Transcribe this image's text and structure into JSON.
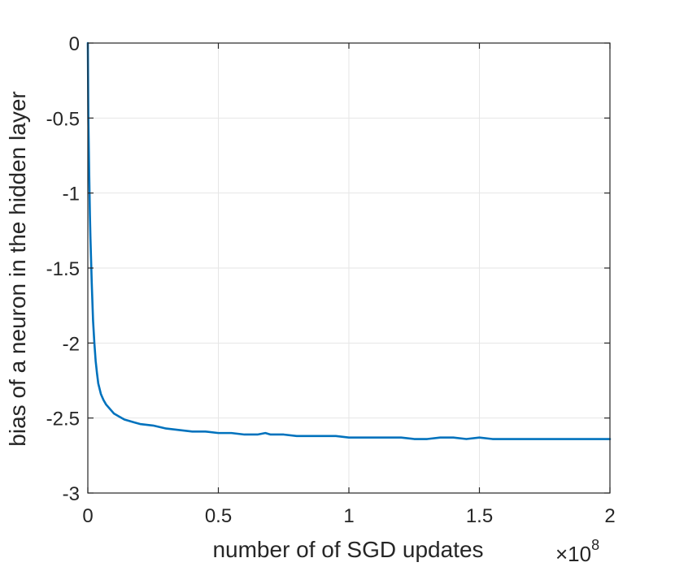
{
  "chart_data": {
    "type": "line",
    "xlabel": "number of of SGD updates",
    "ylabel": "bias of a neuron in the hidden layer",
    "x_exponent_label": {
      "base": "×10",
      "power": "8"
    },
    "xlim": [
      0,
      2
    ],
    "ylim": [
      -3,
      0
    ],
    "xticks": [
      {
        "value": 0,
        "label": "0"
      },
      {
        "value": 0.5,
        "label": "0.5"
      },
      {
        "value": 1,
        "label": "1"
      },
      {
        "value": 1.5,
        "label": "1.5"
      },
      {
        "value": 2,
        "label": "2"
      }
    ],
    "yticks": [
      {
        "value": 0,
        "label": "0"
      },
      {
        "value": -0.5,
        "label": "-0.5"
      },
      {
        "value": -1,
        "label": "-1"
      },
      {
        "value": -1.5,
        "label": "-1.5"
      },
      {
        "value": -2,
        "label": "-2"
      },
      {
        "value": -2.5,
        "label": "-2.5"
      },
      {
        "value": -3,
        "label": "-3"
      }
    ],
    "grid": true,
    "colors": {
      "series": "#0072BD",
      "grid": "#e6e6e6",
      "axis": "#262626"
    },
    "series": [
      {
        "x": [
          0,
          0.002,
          0.005,
          0.008,
          0.01,
          0.015,
          0.02,
          0.025,
          0.03,
          0.035,
          0.04,
          0.05,
          0.06,
          0.07,
          0.08,
          0.09,
          0.1,
          0.12,
          0.14,
          0.16,
          0.18,
          0.2,
          0.25,
          0.3,
          0.35,
          0.4,
          0.45,
          0.5,
          0.55,
          0.6,
          0.65,
          0.68,
          0.7,
          0.75,
          0.8,
          0.85,
          0.9,
          0.95,
          1.0,
          1.05,
          1.1,
          1.15,
          1.2,
          1.25,
          1.3,
          1.35,
          1.4,
          1.45,
          1.5,
          1.55,
          1.6,
          1.65,
          1.7,
          1.75,
          1.8,
          1.85,
          1.9,
          1.95,
          2.0
        ],
        "y": [
          0,
          -0.5,
          -0.85,
          -1.15,
          -1.3,
          -1.6,
          -1.85,
          -2.0,
          -2.12,
          -2.2,
          -2.27,
          -2.34,
          -2.38,
          -2.41,
          -2.43,
          -2.45,
          -2.47,
          -2.49,
          -2.51,
          -2.52,
          -2.53,
          -2.54,
          -2.55,
          -2.57,
          -2.58,
          -2.59,
          -2.59,
          -2.6,
          -2.6,
          -2.61,
          -2.61,
          -2.6,
          -2.61,
          -2.61,
          -2.62,
          -2.62,
          -2.62,
          -2.62,
          -2.63,
          -2.63,
          -2.63,
          -2.63,
          -2.63,
          -2.64,
          -2.64,
          -2.63,
          -2.63,
          -2.64,
          -2.63,
          -2.64,
          -2.64,
          -2.64,
          -2.64,
          -2.64,
          -2.64,
          -2.64,
          -2.64,
          -2.64,
          -2.64
        ]
      }
    ]
  }
}
